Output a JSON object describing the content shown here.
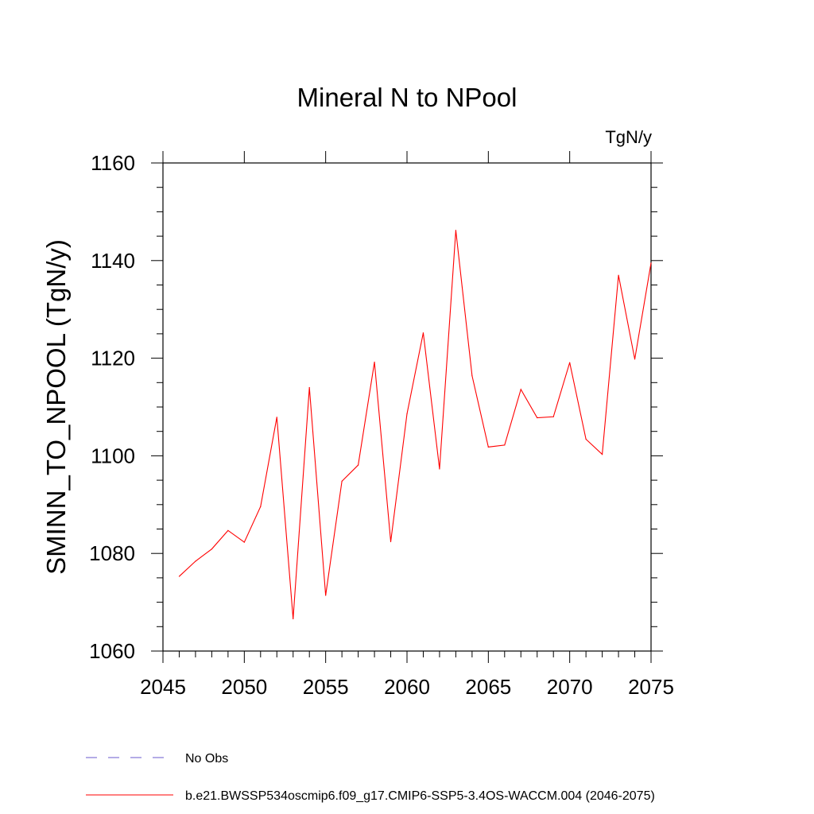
{
  "chart_data": {
    "type": "line",
    "title": "Mineral N to NPool",
    "units": "TgN/y",
    "ylabel": "SMINN_TO_NPOOL  (TgN/y)",
    "xlabel": "",
    "xlim": [
      2045,
      2075
    ],
    "ylim": [
      1060,
      1160
    ],
    "xticks": [
      2045,
      2050,
      2055,
      2060,
      2065,
      2070,
      2075
    ],
    "yticks": [
      1060,
      1080,
      1100,
      1120,
      1140,
      1160
    ],
    "xtick_labels": [
      "2045",
      "2050",
      "2055",
      "2060",
      "2065",
      "2070",
      "2075"
    ],
    "ytick_labels": [
      "1060",
      "1080",
      "1100",
      "1120",
      "1140",
      "1160"
    ],
    "series": [
      {
        "name": "b.e21.BWSSP534oscmip6.f09_g17.CMIP6-SSP5-3.4OS-WACCM.004 (2046-2075)",
        "color": "#ff0000",
        "style": "solid",
        "x": [
          2046,
          2047,
          2048,
          2049,
          2050,
          2051,
          2052,
          2053,
          2054,
          2055,
          2056,
          2057,
          2058,
          2059,
          2060,
          2061,
          2062,
          2063,
          2064,
          2065,
          2066,
          2067,
          2068,
          2069,
          2070,
          2071,
          2072,
          2073,
          2074,
          2075
        ],
        "values": [
          1075.3,
          1078.4,
          1080.9,
          1084.7,
          1082.3,
          1089.6,
          1107.9,
          1066.6,
          1114.0,
          1071.4,
          1094.8,
          1098.1,
          1119.2,
          1082.4,
          1108.6,
          1125.2,
          1097.3,
          1146.2,
          1116.4,
          1101.8,
          1102.2,
          1113.6,
          1107.8,
          1108.0,
          1119.1,
          1103.4,
          1100.3,
          1137.0,
          1119.8,
          1139.5
        ]
      }
    ],
    "legend": {
      "placement": "bottom-left",
      "entries": [
        {
          "label": "No Obs",
          "color": "#6a5acd",
          "style": "dashed"
        },
        {
          "label": "b.e21.BWSSP534oscmip6.f09_g17.CMIP6-SSP5-3.4OS-WACCM.004 (2046-2075)",
          "color": "#ff0000",
          "style": "solid"
        }
      ]
    }
  }
}
